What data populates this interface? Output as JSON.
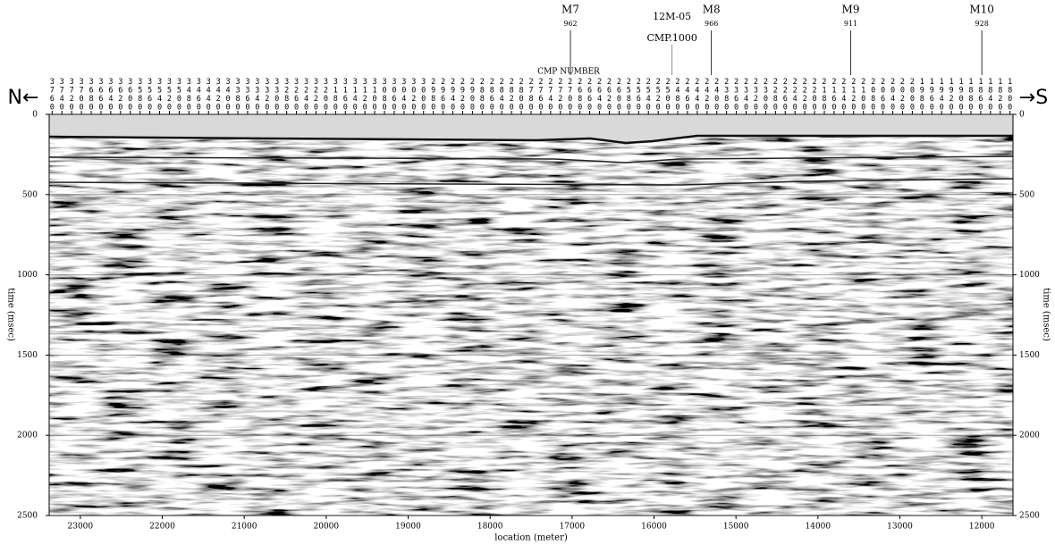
{
  "chart_data": {
    "type": "seismic",
    "direction_left": "N←",
    "direction_right": "→S",
    "cmp_label": "CMP NUMBER",
    "xlabel": "location (meter)",
    "ylabel": "time (msec)",
    "xlim": [
      23380,
      11620
    ],
    "xticks": [
      23000,
      22000,
      21000,
      20000,
      19000,
      18000,
      17000,
      16000,
      15000,
      14000,
      13000,
      12000
    ],
    "ylim": [
      0,
      2500
    ],
    "yticks": [
      0,
      500,
      1000,
      1500,
      2000,
      2500
    ],
    "x2lim": [
      3766,
      1794
    ],
    "x2ticks": [
      3760,
      3740,
      3720,
      3700,
      3680,
      3660,
      3640,
      3620,
      3600,
      3580,
      3560,
      3540,
      3520,
      3500,
      3480,
      3460,
      3440,
      3420,
      3400,
      3380,
      3360,
      3340,
      3320,
      3300,
      3280,
      3260,
      3240,
      3220,
      3200,
      3180,
      3160,
      3140,
      3120,
      3100,
      3080,
      3060,
      3040,
      3020,
      3000,
      2980,
      2960,
      2940,
      2920,
      2900,
      2880,
      2860,
      2840,
      2820,
      2800,
      2780,
      2760,
      2740,
      2720,
      2700,
      2680,
      2660,
      2640,
      2620,
      2600,
      2580,
      2560,
      2540,
      2520,
      2500,
      2480,
      2460,
      2440,
      2420,
      2400,
      2380,
      2360,
      2340,
      2320,
      2300,
      2280,
      2260,
      2240,
      2220,
      2200,
      2180,
      2160,
      2140,
      2120,
      2100,
      2080,
      2060,
      2040,
      2020,
      2000,
      1980,
      1960,
      1940,
      1920,
      1900,
      1880,
      1860,
      1840,
      1820,
      1800
    ],
    "markers": [
      {
        "name": "M7",
        "sub": "962",
        "x": 17020,
        "color": "#000000"
      },
      {
        "name": "12M-05",
        "sub": "CMP.1000",
        "x": 15780,
        "color": "#777777"
      },
      {
        "name": "M8",
        "sub": "966",
        "x": 15300,
        "color": "#000000"
      },
      {
        "name": "M9",
        "sub": "911",
        "x": 13600,
        "color": "#000000"
      },
      {
        "name": "M10",
        "sub": "928",
        "x": 12000,
        "color": "#000000"
      }
    ],
    "grid": true
  }
}
